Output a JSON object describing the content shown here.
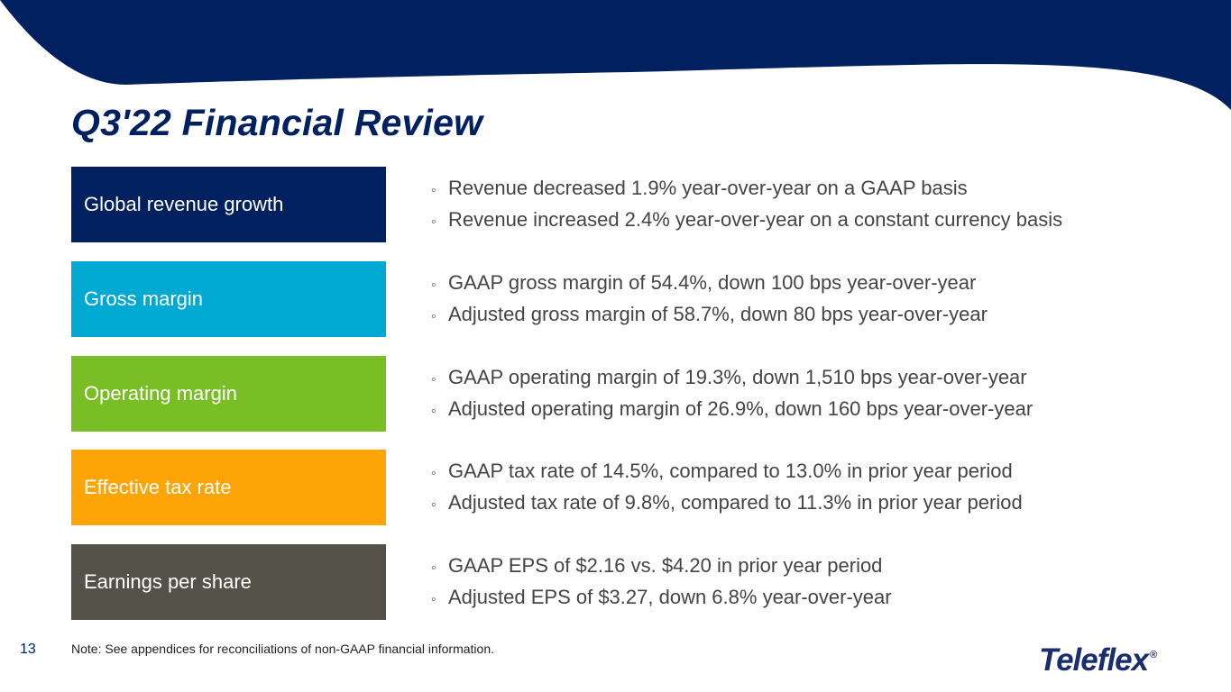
{
  "colors": {
    "navy": "#002060",
    "cyan": "#00A9D2",
    "green": "#79BE25",
    "orange": "#FDA406",
    "gray": "#545149"
  },
  "slide": {
    "title": "Q3'22 Financial Review",
    "page_number": "13",
    "note": "Note: See appendices for reconciliations of non-GAAP financial information."
  },
  "rows": [
    {
      "label": "Global revenue growth",
      "color": "#002060",
      "bullets": [
        "Revenue decreased 1.9% year-over-year on a GAAP basis",
        "Revenue increased 2.4% year-over-year on a constant currency basis"
      ]
    },
    {
      "label": "Gross margin",
      "color": "#00A9D2",
      "bullets": [
        "GAAP gross margin of 54.4%, down 100 bps year-over-year",
        "Adjusted gross margin of 58.7%, down 80 bps year-over-year"
      ]
    },
    {
      "label": "Operating margin",
      "color": "#79BE25",
      "bullets": [
        "GAAP operating margin of 19.3%, down 1,510 bps year-over-year",
        "Adjusted operating margin of 26.9%, down 160 bps year-over-year"
      ]
    },
    {
      "label": "Effective tax rate",
      "color": "#FDA406",
      "bullets": [
        "GAAP tax rate of 14.5%, compared to 13.0% in prior year period",
        "Adjusted tax rate of 9.8%, compared to 11.3% in prior year period"
      ]
    },
    {
      "label": "Earnings per share",
      "color": "#545149",
      "bullets": [
        "GAAP EPS of $2.16 vs. $4.20 in prior year period",
        "Adjusted EPS of $3.27, down 6.8% year-over-year"
      ]
    }
  ],
  "logo": {
    "text": "Teleflex",
    "mark": "®"
  },
  "bullet_glyph": "◦"
}
